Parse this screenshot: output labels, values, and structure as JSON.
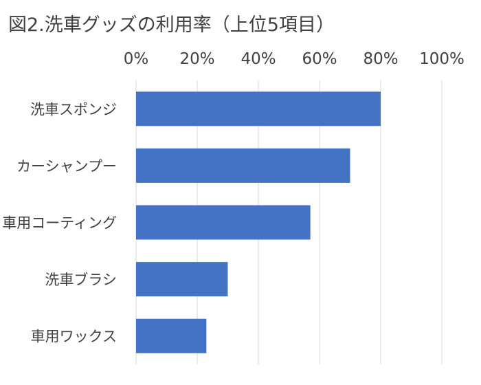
{
  "chart_data": {
    "type": "bar",
    "orientation": "horizontal",
    "title": "図2.洗車グッズの利用率（上位5項目）",
    "categories": [
      "洗車スポンジ",
      "カーシャンプー",
      "車用コーティング",
      "洗車ブラシ",
      "車用ワックス"
    ],
    "values": [
      80,
      70,
      57,
      30,
      23
    ],
    "xlim": [
      0,
      100
    ],
    "x_ticks": [
      0,
      20,
      40,
      60,
      80,
      100
    ],
    "x_tick_labels": [
      "0%",
      "20%",
      "40%",
      "60%",
      "80%",
      "100%"
    ],
    "xaxis_position": "top",
    "xlabel": "",
    "ylabel": "",
    "grid": true,
    "legend": "none",
    "bar_color": "#4472c4",
    "grid_color": "#d9d9d9",
    "text_color": "#404040"
  }
}
